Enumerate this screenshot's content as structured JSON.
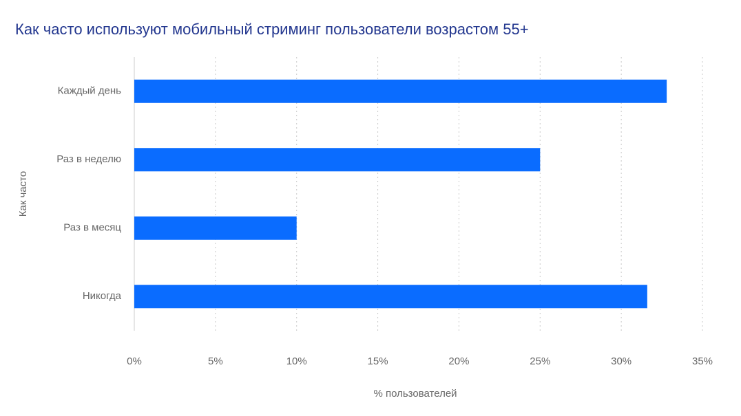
{
  "chart_data": {
    "type": "bar",
    "orientation": "horizontal",
    "title": "Как часто используют мобильный стриминг пользователи возрастом 55+",
    "x_label": "% пользователей",
    "y_label": "Как часто",
    "categories": [
      "Каждый день",
      "Раз в неделю",
      "Раз в месяц",
      "Никогда"
    ],
    "values": [
      32.8,
      25,
      10,
      31.6
    ],
    "color": "#0a6cff",
    "xlim": [
      0,
      35
    ],
    "xticks": [
      {
        "value": 0,
        "label": "0%"
      },
      {
        "value": 5,
        "label": "5%"
      },
      {
        "value": 10,
        "label": "10%"
      },
      {
        "value": 15,
        "label": "15%"
      },
      {
        "value": 20,
        "label": "20%"
      },
      {
        "value": 25,
        "label": "25%"
      },
      {
        "value": 30,
        "label": "30%"
      },
      {
        "value": 35,
        "label": "35%"
      }
    ],
    "grid": true
  }
}
